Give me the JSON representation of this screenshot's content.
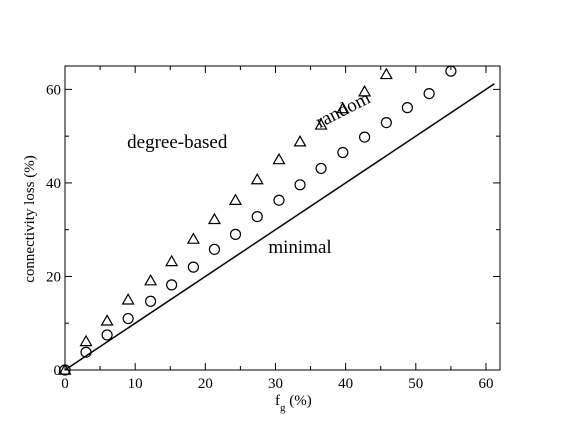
{
  "chart_data": {
    "type": "scatter",
    "title": "",
    "xlabel": {
      "main": "f",
      "subscript": "g",
      "suffix": " (%)"
    },
    "ylabel": "connectivity loss (%)",
    "xlim": [
      0,
      62
    ],
    "ylim": [
      0,
      65
    ],
    "x_ticks": [
      0,
      10,
      20,
      30,
      40,
      50,
      60
    ],
    "y_ticks": [
      0,
      20,
      40,
      60
    ],
    "x_tick_labels": [
      "0",
      "10",
      "20",
      "30",
      "40",
      "50",
      "60"
    ],
    "y_tick_labels": [
      "0",
      "20",
      "40",
      "60"
    ],
    "grid": false,
    "legend": "none",
    "series": [
      {
        "marker": "triangle",
        "points": [
          [
            0,
            0
          ],
          [
            3,
            6.1
          ],
          [
            6,
            10.5
          ],
          [
            9,
            15.0
          ],
          [
            12.2,
            19.1
          ],
          [
            15.2,
            23.2
          ],
          [
            18.3,
            28.0
          ],
          [
            21.3,
            32.2
          ],
          [
            24.3,
            36.3
          ],
          [
            27.4,
            40.7
          ],
          [
            30.5,
            45.0
          ],
          [
            33.5,
            48.8
          ],
          [
            36.5,
            52.4
          ],
          [
            39.6,
            55.9
          ],
          [
            42.7,
            59.5
          ],
          [
            45.8,
            63.2
          ]
        ]
      },
      {
        "marker": "circle",
        "points": [
          [
            0,
            0
          ],
          [
            3,
            3.8
          ],
          [
            6,
            7.5
          ],
          [
            9,
            11.0
          ],
          [
            12.2,
            14.7
          ],
          [
            15.2,
            18.2
          ],
          [
            18.3,
            22.0
          ],
          [
            21.3,
            25.8
          ],
          [
            24.3,
            29.0
          ],
          [
            27.4,
            32.8
          ],
          [
            30.5,
            36.3
          ],
          [
            33.5,
            39.6
          ],
          [
            36.5,
            43.1
          ],
          [
            39.6,
            46.5
          ],
          [
            42.7,
            49.8
          ],
          [
            45.8,
            52.9
          ],
          [
            48.8,
            56.1
          ],
          [
            51.9,
            59.1
          ],
          [
            55,
            63.9
          ]
        ]
      },
      {
        "marker": "line",
        "points": [
          [
            0,
            0
          ],
          [
            61.2,
            61.2
          ]
        ]
      }
    ],
    "annotations": [
      {
        "id": "degree",
        "text": "degree-based",
        "x": 16,
        "y": 47.5,
        "rotate": 0
      },
      {
        "id": "random",
        "text": "random",
        "x": 40,
        "y": 54.5,
        "rotate": -27
      },
      {
        "id": "minimal",
        "text": "minimal",
        "x": 33.5,
        "y": 25,
        "rotate": 0
      }
    ]
  }
}
